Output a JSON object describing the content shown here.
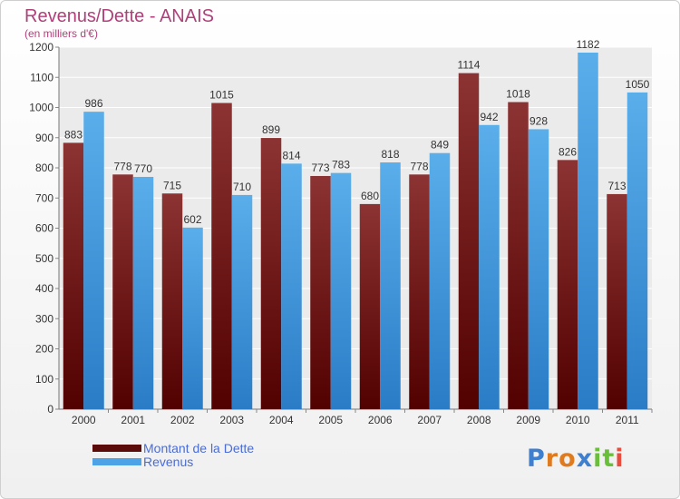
{
  "chart_data": {
    "type": "bar",
    "title": "Revenus/Dette - ANAIS",
    "subtitle": "(en milliers d'€)",
    "categories": [
      "2000",
      "2001",
      "2002",
      "2003",
      "2004",
      "2005",
      "2006",
      "2007",
      "2008",
      "2009",
      "2010",
      "2011"
    ],
    "series": [
      {
        "name": "Montant de la Dette",
        "color": "#7a2323",
        "values": [
          883,
          778,
          715,
          1015,
          899,
          773,
          680,
          778,
          1114,
          1018,
          826,
          713
        ]
      },
      {
        "name": "Revenus",
        "color": "#4da3e6",
        "values": [
          986,
          770,
          602,
          710,
          814,
          783,
          818,
          849,
          942,
          928,
          1182,
          1050
        ]
      }
    ],
    "ylim": [
      0,
      1200
    ],
    "yticks": [
      0,
      100,
      200,
      300,
      400,
      500,
      600,
      700,
      800,
      900,
      1000,
      1100,
      1200
    ],
    "grid": true,
    "legend_position": "bottom-left"
  },
  "logo": {
    "letters": [
      "P",
      "r",
      "o",
      "x",
      "i",
      "t",
      "i"
    ],
    "colors": [
      "#3f7fd0",
      "#e07a1f",
      "#e07a1f",
      "#3f7fd0",
      "#6abf3a",
      "#6abf3a",
      "#e84c3d"
    ]
  }
}
